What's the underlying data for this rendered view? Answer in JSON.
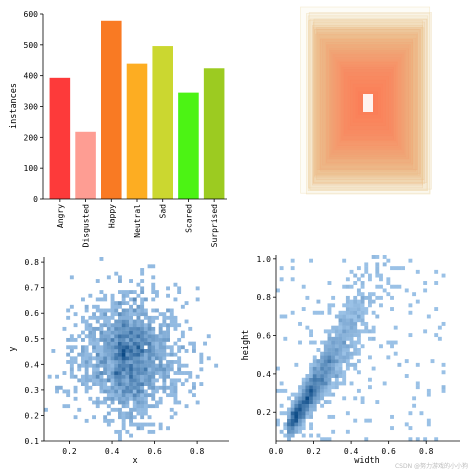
{
  "watermark": "CSDN @努力游戏的小小狗",
  "chart_data": [
    {
      "type": "bar",
      "categories": [
        "Angry",
        "Disgusted",
        "Happy",
        "Neutral",
        "Sad",
        "Scared",
        "Surprised"
      ],
      "values": [
        393,
        218,
        578,
        439,
        496,
        345,
        424
      ],
      "colors": [
        "#fd3a3a",
        "#fe9d93",
        "#f97a23",
        "#fdad22",
        "#cbd730",
        "#4cf314",
        "#9ccb21"
      ],
      "title": "",
      "xlabel": "",
      "ylabel": "instances",
      "ylim": [
        0,
        600
      ],
      "yticks": [
        "0",
        "100",
        "200",
        "300",
        "400",
        "500",
        "600"
      ]
    },
    {
      "type": "heatmap",
      "description_series": "overlaid bounding-box rectangles (normalized, centered)",
      "boxes_width": [
        0.95,
        0.91,
        0.9,
        0.88,
        0.86,
        0.84,
        0.83,
        0.82,
        0.81,
        0.8,
        0.79,
        0.78,
        0.77,
        0.76,
        0.75,
        0.74,
        0.72,
        0.7,
        0.68,
        0.66,
        0.64,
        0.62,
        0.6,
        0.58,
        0.56,
        0.54,
        0.52,
        0.5,
        0.48,
        0.46,
        0.44,
        0.42,
        0.4,
        0.38,
        0.36,
        0.34,
        0.3,
        0.26,
        0.22,
        0.18,
        0.14,
        0.1
      ],
      "boxes_height": [
        0.98,
        0.95,
        0.93,
        0.92,
        0.9,
        0.88,
        0.86,
        0.85,
        0.84,
        0.82,
        0.8,
        0.78,
        0.77,
        0.76,
        0.74,
        0.72,
        0.71,
        0.7,
        0.68,
        0.66,
        0.64,
        0.62,
        0.6,
        0.58,
        0.56,
        0.54,
        0.52,
        0.5,
        0.48,
        0.46,
        0.44,
        0.42,
        0.4,
        0.38,
        0.35,
        0.32,
        0.28,
        0.24,
        0.2,
        0.16,
        0.12,
        0.08
      ],
      "color_outer": "#e8d39a",
      "color_inner": "#fd7a55"
    },
    {
      "type": "heatmap",
      "xlabel": "x",
      "ylabel": "y",
      "xlim": [
        0.08,
        0.95
      ],
      "ylim": [
        0.1,
        0.82
      ],
      "xticks": [
        "0.2",
        "0.4",
        "0.6",
        "0.8"
      ],
      "xtick_values": [
        0.2,
        0.4,
        0.6,
        0.8
      ],
      "yticks": [
        "0.1",
        "0.2",
        "0.3",
        "0.4",
        "0.5",
        "0.6",
        "0.7",
        "0.8"
      ],
      "ytick_values": [
        0.1,
        0.2,
        0.3,
        0.4,
        0.5,
        0.6,
        0.7,
        0.8
      ],
      "center": [
        0.48,
        0.43
      ],
      "spread": [
        0.13,
        0.11
      ],
      "count": 2200,
      "color_low": "#a8ccef",
      "color_high": "#0b4a86"
    },
    {
      "type": "heatmap",
      "xlabel": "width",
      "ylabel": "height",
      "xlim": [
        0.0,
        0.98
      ],
      "ylim": [
        0.05,
        1.02
      ],
      "xticks": [
        "0.0",
        "0.2",
        "0.4",
        "0.6",
        "0.8"
      ],
      "xtick_values": [
        0.0,
        0.2,
        0.4,
        0.6,
        0.8
      ],
      "yticks": [
        "0.2",
        "0.4",
        "0.6",
        "0.8",
        "1.0"
      ],
      "ytick_values": [
        0.2,
        0.4,
        0.6,
        0.8,
        1.0
      ],
      "count": 2200,
      "color_low": "#a8ccef",
      "color_high": "#0b4a86"
    }
  ]
}
